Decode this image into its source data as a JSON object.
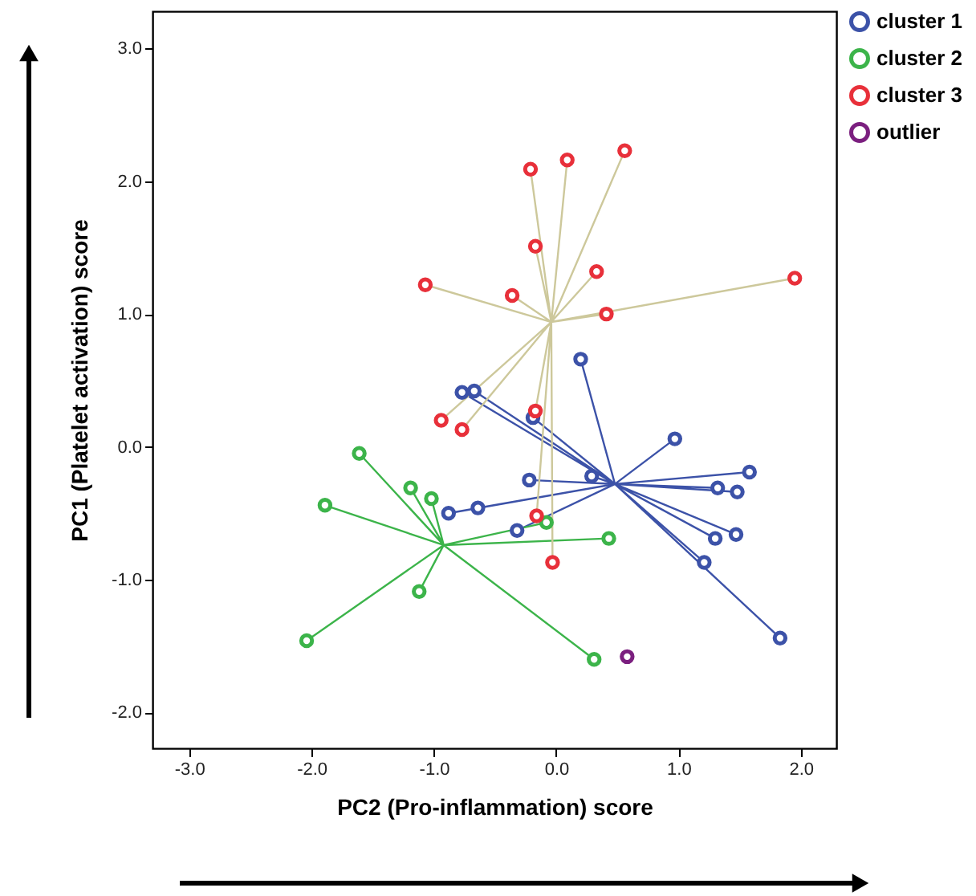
{
  "chart_data": {
    "type": "scatter",
    "xlabel": "PC2 (Pro-inflammation) score",
    "ylabel": "PC1 (Platelet activation) score",
    "xlim": [
      -3.3,
      2.29
    ],
    "ylim": [
      -2.27,
      3.28
    ],
    "xticks": [
      {
        "value": -3,
        "label": "-3.0"
      },
      {
        "value": -2,
        "label": "-2.0"
      },
      {
        "value": -1,
        "label": "-1.0"
      },
      {
        "value": 0,
        "label": "0.0"
      },
      {
        "value": 1,
        "label": "1.0"
      },
      {
        "value": 2,
        "label": "2.0"
      }
    ],
    "yticks": [
      {
        "value": -2,
        "label": "-2.0"
      },
      {
        "value": -1,
        "label": "-1.0"
      },
      {
        "value": 0,
        "label": "0.0"
      },
      {
        "value": 1,
        "label": "1.0"
      },
      {
        "value": 2,
        "label": "2.0"
      },
      {
        "value": 3,
        "label": "3.0"
      }
    ],
    "grid": false,
    "legend": "top right",
    "marker": "circle",
    "series": [
      {
        "type": "line",
        "marker": "none",
        "color": "#3c52a8",
        "x": [
          0.48,
          0.2,
          0.48,
          -0.77,
          0.48,
          -0.67,
          0.48,
          -0.19,
          0.48,
          0.97,
          0.48,
          0.29,
          0.48,
          -0.22,
          0.48,
          1.58,
          0.48,
          1.32,
          0.48,
          1.48,
          0.48,
          -0.64,
          0.48,
          -0.88,
          0.48,
          -0.32,
          0.48,
          1.3,
          0.48,
          1.47,
          0.48,
          1.21,
          0.48,
          1.83
        ],
        "values": [
          -0.28,
          0.66,
          -0.28,
          0.41,
          -0.28,
          0.42,
          -0.28,
          0.22,
          -0.28,
          0.06,
          -0.28,
          -0.22,
          -0.28,
          -0.25,
          -0.28,
          -0.19,
          -0.28,
          -0.31,
          -0.28,
          -0.34,
          -0.28,
          -0.46,
          -0.28,
          -0.5,
          -0.28,
          -0.63,
          -0.28,
          -0.69,
          -0.28,
          -0.66,
          -0.28,
          -0.87,
          -0.28,
          -1.44
        ]
      },
      {
        "type": "line",
        "marker": "none",
        "color": "#3cb44a",
        "x": [
          -0.92,
          -1.61,
          -0.92,
          -1.19,
          -0.92,
          -1.02,
          -0.92,
          -1.89,
          -0.92,
          -0.08,
          -0.92,
          0.43,
          -0.92,
          -1.12,
          -0.92,
          -2.04,
          -0.92,
          0.31
        ],
        "values": [
          -0.74,
          -0.05,
          -0.74,
          -0.31,
          -0.74,
          -0.39,
          -0.74,
          -0.44,
          -0.74,
          -0.57,
          -0.74,
          -0.69,
          -0.74,
          -1.09,
          -0.74,
          -1.46,
          -0.74,
          -1.6
        ]
      },
      {
        "type": "line",
        "marker": "none",
        "color": "#cdc89b",
        "x": [
          -0.04,
          -0.21,
          -0.04,
          0.09,
          -0.04,
          0.56,
          -0.04,
          -0.17,
          -0.04,
          0.33,
          -0.04,
          -1.07,
          -0.04,
          -0.36,
          -0.04,
          1.95,
          -0.04,
          0.41,
          -0.04,
          -0.17,
          -0.04,
          -0.94,
          -0.04,
          -0.77,
          -0.04,
          -0.16,
          -0.04,
          -0.03
        ],
        "values": [
          0.94,
          2.09,
          0.94,
          2.16,
          0.94,
          2.23,
          0.94,
          1.51,
          0.94,
          1.32,
          0.94,
          1.22,
          0.94,
          1.14,
          0.94,
          1.27,
          0.94,
          1.0,
          0.94,
          0.27,
          0.94,
          0.2,
          0.94,
          0.13,
          0.94,
          -0.52,
          0.94,
          -0.87
        ]
      },
      {
        "name": "cluster 1",
        "color": "#3c52a8",
        "x": [
          0.2,
          -0.77,
          -0.67,
          -0.19,
          0.97,
          0.29,
          -0.22,
          1.58,
          1.32,
          1.48,
          -0.64,
          -0.88,
          -0.32,
          1.3,
          1.47,
          1.21,
          1.83
        ],
        "values": [
          0.66,
          0.41,
          0.42,
          0.22,
          0.06,
          -0.22,
          -0.25,
          -0.19,
          -0.31,
          -0.34,
          -0.46,
          -0.5,
          -0.63,
          -0.69,
          -0.66,
          -0.87,
          -1.44
        ]
      },
      {
        "name": "cluster 2",
        "color": "#3cb44a",
        "x": [
          -1.61,
          -1.19,
          -1.02,
          -1.89,
          -0.08,
          0.43,
          -1.12,
          -2.04,
          0.31
        ],
        "values": [
          -0.05,
          -0.31,
          -0.39,
          -0.44,
          -0.57,
          -0.69,
          -1.09,
          -1.46,
          -1.6
        ]
      },
      {
        "name": "cluster 3",
        "color": "#e8303a",
        "x": [
          -0.21,
          0.09,
          0.56,
          -0.17,
          0.33,
          -1.07,
          -0.36,
          1.95,
          0.41,
          -0.17,
          -0.94,
          -0.77,
          -0.16,
          -0.03
        ],
        "values": [
          2.09,
          2.16,
          2.23,
          1.51,
          1.32,
          1.22,
          1.14,
          1.27,
          1.0,
          0.27,
          0.2,
          0.13,
          -0.52,
          -0.87
        ]
      },
      {
        "name": "outlier",
        "color": "#7b1f7f",
        "x": [
          0.58
        ],
        "values": [
          -1.58
        ]
      }
    ]
  }
}
